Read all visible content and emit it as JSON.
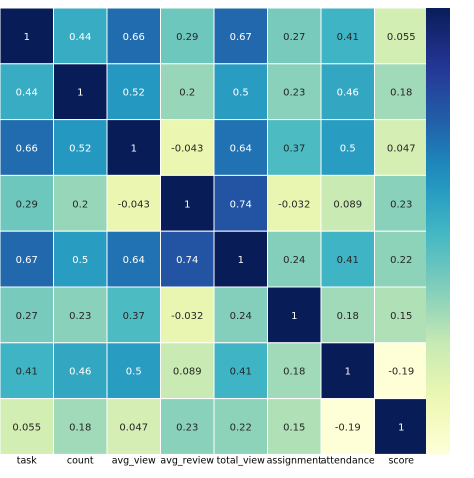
{
  "chart_data": {
    "type": "heatmap",
    "title": "",
    "xlabel": "",
    "ylabel": "",
    "categories": [
      "task",
      "count",
      "avg_view",
      "avg_review",
      "total_view",
      "assignment",
      "attendance",
      "score"
    ],
    "values": [
      [
        1,
        0.44,
        0.66,
        0.29,
        0.67,
        0.27,
        0.41,
        0.055
      ],
      [
        0.44,
        1,
        0.52,
        0.2,
        0.5,
        0.23,
        0.46,
        0.18
      ],
      [
        0.66,
        0.52,
        1,
        -0.043,
        0.64,
        0.37,
        0.5,
        0.047
      ],
      [
        0.29,
        0.2,
        -0.043,
        1,
        0.74,
        -0.032,
        0.089,
        0.23
      ],
      [
        0.67,
        0.5,
        0.64,
        0.74,
        1,
        0.24,
        0.41,
        0.22
      ],
      [
        0.27,
        0.23,
        0.37,
        -0.032,
        0.24,
        1,
        0.18,
        0.15
      ],
      [
        0.41,
        0.46,
        0.5,
        0.089,
        0.41,
        0.18,
        1,
        -0.19
      ],
      [
        0.055,
        0.18,
        0.047,
        0.23,
        0.22,
        0.15,
        -0.19,
        1
      ]
    ],
    "labels": [
      [
        "1",
        "0.44",
        "0.66",
        "0.29",
        "0.67",
        "0.27",
        "0.41",
        "0.055"
      ],
      [
        "0.44",
        "1",
        "0.52",
        "0.2",
        "0.5",
        "0.23",
        "0.46",
        "0.18"
      ],
      [
        "0.66",
        "0.52",
        "1",
        "-0.043",
        "0.64",
        "0.37",
        "0.5",
        "0.047"
      ],
      [
        "0.29",
        "0.2",
        "-0.043",
        "1",
        "0.74",
        "-0.032",
        "0.089",
        "0.23"
      ],
      [
        "0.67",
        "0.5",
        "0.64",
        "0.74",
        "1",
        "0.24",
        "0.41",
        "0.22"
      ],
      [
        "0.27",
        "0.23",
        "0.37",
        "-0.032",
        "0.24",
        "1",
        "0.18",
        "0.15"
      ],
      [
        "0.41",
        "0.46",
        "0.5",
        "0.089",
        "0.41",
        "0.18",
        "1",
        "-0.19"
      ],
      [
        "0.055",
        "0.18",
        "0.047",
        "0.23",
        "0.22",
        "0.15",
        "-0.19",
        "1"
      ]
    ],
    "colormap": "YlGnBu",
    "vlim": [
      -0.2,
      1
    ],
    "colorbar": "right"
  }
}
